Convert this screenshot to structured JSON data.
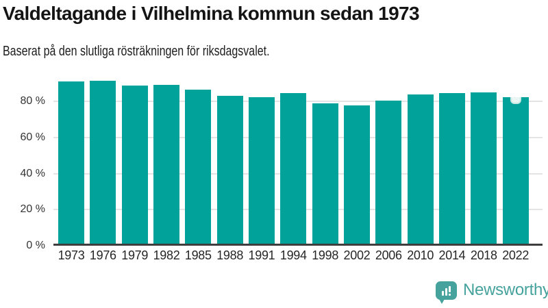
{
  "header": {
    "title": "Valdeltagande i Vilhelmina kommun sedan 1973",
    "subtitle": "Baserat på den slutliga rösträkningen för riksdagsvalet."
  },
  "chart_data": {
    "type": "bar",
    "title": "Valdeltagande i Vilhelmina kommun sedan 1973",
    "subtitle": "Baserat på den slutliga rösträkningen för riksdagsvalet.",
    "categories": [
      "1973",
      "1976",
      "1979",
      "1982",
      "1985",
      "1988",
      "1991",
      "1994",
      "1998",
      "2002",
      "2006",
      "2010",
      "2014",
      "2018",
      "2022"
    ],
    "values": [
      90.9,
      91.3,
      88.9,
      89.1,
      86.6,
      83.2,
      82.4,
      84.7,
      79.0,
      77.7,
      80.5,
      84.0,
      84.7,
      84.9,
      82.5
    ],
    "unit": "%",
    "xlabel": "",
    "ylabel": "",
    "y_ticks": [
      "0 %",
      "20 %",
      "40 %",
      "60 %",
      "80 %"
    ],
    "y_tick_values": [
      0,
      20,
      40,
      60,
      80
    ],
    "ylim": [
      0,
      92.6
    ],
    "grid": "horizontal",
    "legend": "none",
    "bar_color": "#00a29a",
    "axis_line_color": "#3e3e3e",
    "gridline_color": "#e4e4e4",
    "annotation": {
      "category": "2022",
      "type": "notch-marker",
      "fill": "#e9f6f3",
      "border": "#c8e9e3"
    }
  },
  "branding": {
    "logo_text": "Newsworthy",
    "color": "#45a29c",
    "icon": "speech-bubble-bar-chart-icon"
  }
}
